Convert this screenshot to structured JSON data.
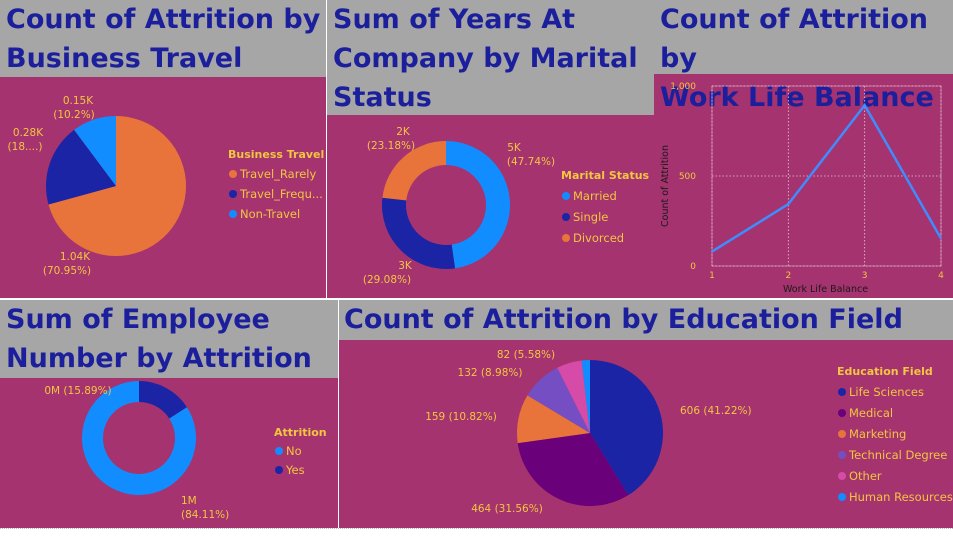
{
  "tiles": {
    "business_travel": {
      "title_line1": "Count of Attrition by",
      "title_line2": "Business Travel",
      "legend_title": "Business Travel"
    },
    "marital": {
      "title_line1": "Sum of Years At",
      "title_line2": "Company by Marital",
      "title_line3": "Status",
      "legend_title": "Marital Status"
    },
    "work_life": {
      "title_line1": "Count of Attrition by",
      "title_line2": "Work Life Balance"
    },
    "employee_number": {
      "title_line1": "Sum of Employee",
      "title_line2": "Number by Attrition",
      "legend_title": "Attrition"
    },
    "education": {
      "title_line1": "Count of Attrition by Education Field",
      "legend_title": "Education Field"
    }
  },
  "colors": {
    "background": "#a5336f",
    "header": "#a6a6a6",
    "title": "#1c1f9c",
    "label": "#f2c640",
    "orange": "#e8743b",
    "darkblue": "#1a24a4",
    "blue": "#118dff",
    "purple": "#6b007b",
    "lavender": "#744ec2",
    "pink": "#d64ba7"
  },
  "chart_data": [
    {
      "type": "pie",
      "title": "Count of Attrition by Business Travel",
      "legend_title": "Business Travel",
      "categories": [
        "Travel_Rarely",
        "Travel_Frequ...",
        "Non-Travel"
      ],
      "values": [
        1040,
        280,
        150
      ],
      "data_labels": [
        {
          "value": "1.04K",
          "pct": "(70.95%)"
        },
        {
          "value": "0.28K",
          "pct": "(18....)"
        },
        {
          "value": "0.15K",
          "pct": "(10.2%)"
        }
      ],
      "colors": [
        "#e8743b",
        "#1a24a4",
        "#118dff"
      ],
      "legend_position": "right"
    },
    {
      "type": "donut",
      "title": "Sum of Years At Company by Marital Status",
      "legend_title": "Marital Status",
      "categories": [
        "Married",
        "Single",
        "Divorced"
      ],
      "values": [
        47.74,
        29.08,
        23.18
      ],
      "data_labels": [
        {
          "value": "5K",
          "pct": "(47.74%)"
        },
        {
          "value": "3K",
          "pct": "(29.08%)"
        },
        {
          "value": "2K",
          "pct": "(23.18%)"
        }
      ],
      "colors": [
        "#118dff",
        "#1a24a4",
        "#e8743b"
      ],
      "legend_position": "right"
    },
    {
      "type": "line",
      "title": "Count of Attrition by Work Life Balance",
      "xlabel": "Work Life Balance",
      "ylabel": "Count of Attrition",
      "x": [
        1,
        2,
        3,
        4
      ],
      "y": [
        80,
        344,
        893,
        153
      ],
      "x_ticks": [
        "1",
        "2",
        "3",
        "4"
      ],
      "y_ticks": [
        "0",
        "500",
        "1,000"
      ],
      "ylim": [
        0,
        1000
      ],
      "grid": true,
      "color": "#3f8cff"
    },
    {
      "type": "donut",
      "title": "Sum of Employee Number by Attrition",
      "legend_title": "Attrition",
      "categories": [
        "No",
        "Yes"
      ],
      "values": [
        84.11,
        15.89
      ],
      "data_labels": [
        {
          "value": "1M",
          "pct": "(84.11%)"
        },
        {
          "value": "0M",
          "pct": "(15.89%)"
        }
      ],
      "colors": [
        "#118dff",
        "#1a24a4"
      ],
      "legend_position": "right"
    },
    {
      "type": "pie",
      "title": "Count of Attrition by Education Field",
      "legend_title": "Education Field",
      "categories": [
        "Life Sciences",
        "Medical",
        "Marketing",
        "Technical Degree",
        "Other",
        "Human Resources"
      ],
      "values": [
        606,
        464,
        159,
        132,
        82,
        27
      ],
      "data_labels": [
        {
          "text": "606 (41.22%)"
        },
        {
          "text": "464 (31.56%)"
        },
        {
          "text": "159 (10.82%)"
        },
        {
          "text": "132 (8.98%)"
        },
        {
          "text": "82 (5.58%)"
        },
        {
          "text": ""
        }
      ],
      "colors": [
        "#1a24a4",
        "#6b007b",
        "#e8743b",
        "#744ec2",
        "#d64ba7",
        "#118dff"
      ],
      "legend_position": "right"
    }
  ]
}
